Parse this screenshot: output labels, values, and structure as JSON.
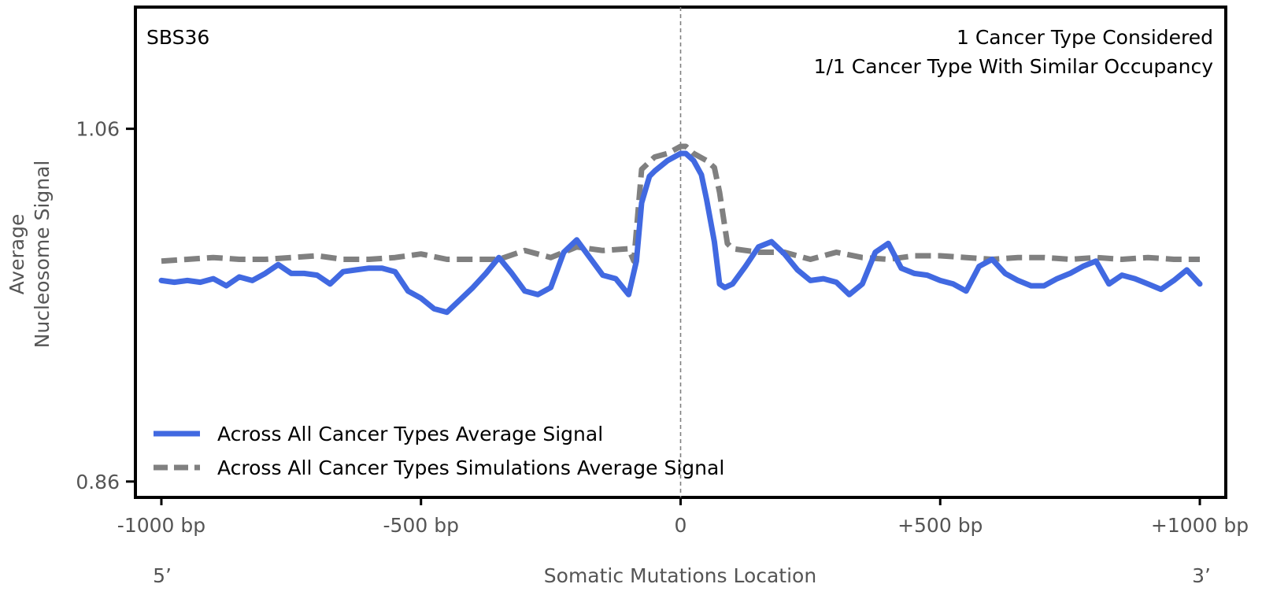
{
  "chart_data": {
    "type": "line",
    "title": "SBS36",
    "annotations": [
      "1 Cancer Type Considered",
      "1/1 Cancer Type With Similar Occupancy"
    ],
    "xlabel": "Somatic Mutations Location",
    "ylabel_lines": [
      "Average",
      "Nucleosome Signal"
    ],
    "xlim": [
      -1050,
      1050
    ],
    "ylim": [
      0.851,
      1.129
    ],
    "x_ticks": [
      -1000,
      -500,
      0,
      500,
      1000
    ],
    "x_tick_labels": [
      "-1000 bp",
      "-500 bp",
      "0",
      "+500 bp",
      "+1000 bp"
    ],
    "y_ticks": [
      0.86,
      1.06
    ],
    "y_tick_labels": [
      "0.86",
      "1.06"
    ],
    "end_labels": [
      "5’",
      "3’"
    ],
    "legend_position": "lower-left",
    "grid": false,
    "series": [
      {
        "name": "Across All Cancer Types Average Signal",
        "color": "#4169e1",
        "style": "solid",
        "x": [
          -1000,
          -975,
          -950,
          -925,
          -900,
          -875,
          -850,
          -825,
          -800,
          -775,
          -750,
          -725,
          -700,
          -675,
          -650,
          -625,
          -600,
          -575,
          -550,
          -525,
          -500,
          -475,
          -450,
          -425,
          -400,
          -375,
          -350,
          -325,
          -300,
          -275,
          -250,
          -225,
          -200,
          -175,
          -150,
          -125,
          -100,
          -85,
          -75,
          -60,
          -50,
          -25,
          0,
          10,
          25,
          40,
          50,
          65,
          75,
          85,
          100,
          125,
          150,
          175,
          200,
          225,
          250,
          275,
          300,
          325,
          350,
          375,
          400,
          425,
          450,
          475,
          500,
          525,
          550,
          575,
          600,
          625,
          650,
          675,
          700,
          725,
          750,
          775,
          800,
          825,
          850,
          875,
          900,
          925,
          950,
          975,
          1000
        ],
        "values": [
          0.974,
          0.973,
          0.974,
          0.973,
          0.975,
          0.971,
          0.976,
          0.974,
          0.978,
          0.983,
          0.978,
          0.978,
          0.977,
          0.972,
          0.979,
          0.98,
          0.981,
          0.981,
          0.979,
          0.968,
          0.964,
          0.958,
          0.956,
          0.963,
          0.97,
          0.978,
          0.987,
          0.978,
          0.968,
          0.966,
          0.97,
          0.99,
          0.997,
          0.987,
          0.977,
          0.975,
          0.966,
          0.985,
          1.018,
          1.033,
          1.036,
          1.042,
          1.046,
          1.046,
          1.042,
          1.034,
          1.02,
          0.996,
          0.972,
          0.97,
          0.972,
          0.982,
          0.993,
          0.996,
          0.989,
          0.98,
          0.974,
          0.975,
          0.973,
          0.966,
          0.972,
          0.99,
          0.995,
          0.981,
          0.978,
          0.977,
          0.974,
          0.972,
          0.968,
          0.982,
          0.986,
          0.978,
          0.974,
          0.971,
          0.971,
          0.975,
          0.978,
          0.982,
          0.985,
          0.972,
          0.977,
          0.975,
          0.972,
          0.969,
          0.974,
          0.98,
          0.972
        ]
      },
      {
        "name": "Across All Cancer Types Simulations Average Signal",
        "color": "#808080",
        "style": "dashed",
        "x": [
          -1000,
          -950,
          -900,
          -850,
          -800,
          -750,
          -700,
          -650,
          -600,
          -550,
          -500,
          -450,
          -400,
          -350,
          -300,
          -250,
          -225,
          -200,
          -150,
          -100,
          -90,
          -75,
          -50,
          -25,
          0,
          10,
          25,
          50,
          65,
          75,
          90,
          100,
          150,
          200,
          250,
          300,
          350,
          400,
          450,
          500,
          550,
          600,
          650,
          700,
          750,
          800,
          850,
          900,
          950,
          1000
        ],
        "values": [
          0.985,
          0.986,
          0.987,
          0.986,
          0.986,
          0.987,
          0.988,
          0.986,
          0.986,
          0.987,
          0.989,
          0.986,
          0.986,
          0.986,
          0.991,
          0.987,
          0.99,
          0.993,
          0.991,
          0.992,
          0.985,
          1.037,
          1.044,
          1.046,
          1.05,
          1.05,
          1.046,
          1.042,
          1.038,
          1.024,
          0.995,
          0.992,
          0.99,
          0.99,
          0.986,
          0.99,
          0.987,
          0.986,
          0.988,
          0.988,
          0.987,
          0.986,
          0.987,
          0.987,
          0.986,
          0.987,
          0.986,
          0.987,
          0.986,
          0.986
        ]
      }
    ]
  }
}
